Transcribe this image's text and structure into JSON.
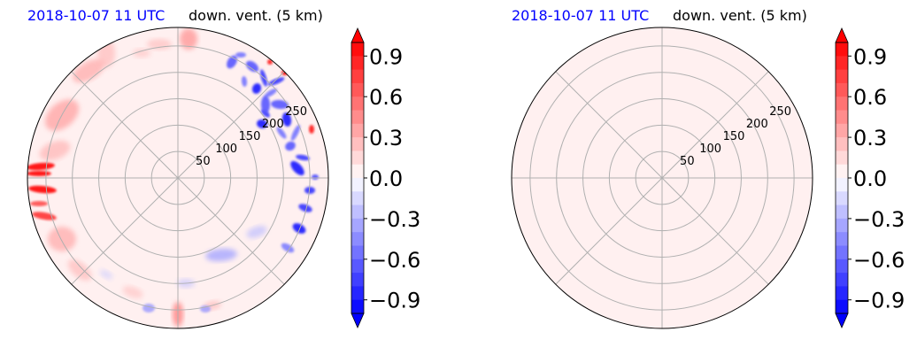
{
  "figure": {
    "panels": [
      {
        "date": "2018-10-07 11 UTC",
        "title": "down. vent. (5 km)"
      },
      {
        "date": "2018-10-07 11 UTC",
        "title": "down. vent. (5 km)"
      }
    ]
  },
  "chart_data": [
    {
      "type": "heatmap",
      "projection": "polar",
      "date_text": "2018-10-07 11 UTC",
      "title": "down. vent. (5 km)",
      "range_ring_labels": [
        "50",
        "100",
        "150",
        "200",
        "250"
      ],
      "range_rings": [
        50,
        100,
        150,
        200,
        250
      ],
      "r_max": 285,
      "radial_spokes_deg": [
        0,
        45,
        90,
        135,
        180,
        225,
        270,
        315
      ],
      "grid": true,
      "background_value": 0.05,
      "features": [
        {
          "sign": "positive",
          "location": "west edge",
          "value": 1.0
        },
        {
          "sign": "positive",
          "location": "north-west to west, outer ring",
          "value": 0.35
        },
        {
          "sign": "positive",
          "location": "north, near top",
          "value": 0.4
        },
        {
          "sign": "positive",
          "location": "north-east edge",
          "value": 1.0
        },
        {
          "sign": "positive",
          "location": "south, near bottom",
          "value": 0.5
        },
        {
          "sign": "negative",
          "location": "north-east to east, outer ring",
          "value": -0.9
        },
        {
          "sign": "negative",
          "location": "east to south-east edge",
          "value": -0.8
        },
        {
          "sign": "negative",
          "location": "south-south-east",
          "value": -0.35
        },
        {
          "sign": "negative",
          "location": "south",
          "value": -0.4
        }
      ],
      "colorbar": {
        "cmap": "bwr",
        "vmin": -1.0,
        "vmax": 1.0,
        "levels": 20,
        "extend": "both",
        "ticks": [
          0.9,
          0.6,
          0.3,
          0.0,
          -0.3,
          -0.6,
          -0.9
        ],
        "tick_labels": [
          "0.9",
          "0.6",
          "0.3",
          "0.0",
          "−0.3",
          "−0.6",
          "−0.9"
        ]
      }
    },
    {
      "type": "heatmap",
      "projection": "polar",
      "date_text": "2018-10-07 11 UTC",
      "title": "down. vent. (5 km)",
      "range_ring_labels": [
        "50",
        "100",
        "150",
        "200",
        "250"
      ],
      "range_rings": [
        50,
        100,
        150,
        200,
        250
      ],
      "r_max": 285,
      "radial_spokes_deg": [
        0,
        45,
        90,
        135,
        180,
        225,
        270,
        315
      ],
      "grid": true,
      "background_value": 0.05,
      "features": [],
      "colorbar": {
        "cmap": "bwr",
        "vmin": -1.0,
        "vmax": 1.0,
        "levels": 20,
        "extend": "both",
        "ticks": [
          0.9,
          0.6,
          0.3,
          0.0,
          -0.3,
          -0.6,
          -0.9
        ],
        "tick_labels": [
          "0.9",
          "0.6",
          "0.3",
          "0.0",
          "−0.3",
          "−0.6",
          "−0.9"
        ]
      }
    }
  ]
}
